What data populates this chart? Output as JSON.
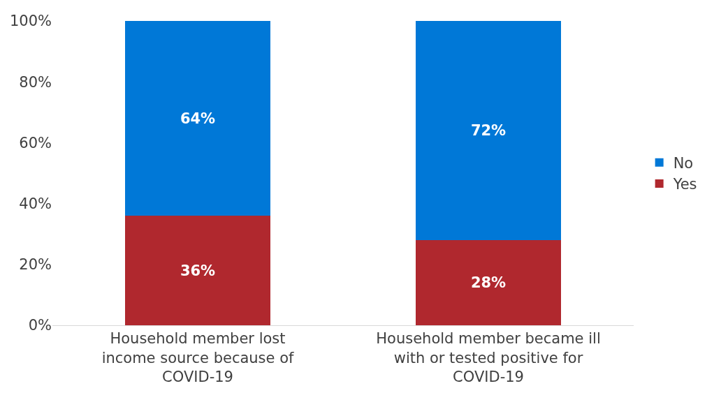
{
  "chart_data": {
    "type": "bar",
    "stacked": true,
    "categories": [
      "Household member lost income source because of COVID-19",
      "Household member became ill with or tested positive for COVID-19"
    ],
    "series": [
      {
        "name": "Yes",
        "color": "#b0282e",
        "values": [
          36,
          28
        ],
        "value_labels": [
          "36%",
          "28%"
        ]
      },
      {
        "name": "No",
        "color": "#0078d7",
        "values": [
          64,
          72
        ],
        "value_labels": [
          "64%",
          "72%"
        ]
      }
    ],
    "ylim": [
      0,
      100
    ],
    "yticks": [
      {
        "value": 0,
        "label": "0%"
      },
      {
        "value": 20,
        "label": "20%"
      },
      {
        "value": 40,
        "label": "40%"
      },
      {
        "value": 60,
        "label": "60%"
      },
      {
        "value": 80,
        "label": "80%"
      },
      {
        "value": 100,
        "label": "100%"
      }
    ],
    "legend": "right"
  }
}
